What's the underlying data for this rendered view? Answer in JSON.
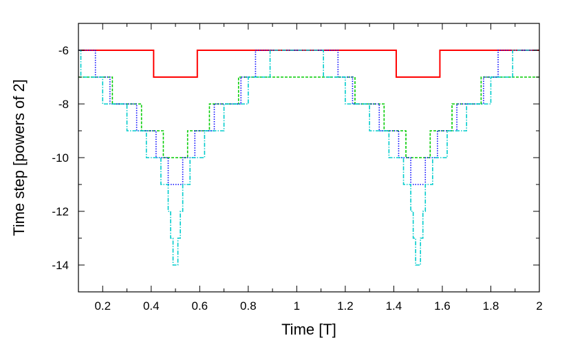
{
  "chart_data": {
    "type": "line",
    "title": "",
    "xlabel": "Time [T]",
    "ylabel": "Time step [powers of 2]",
    "xlim": [
      0.1,
      2.0
    ],
    "ylim": [
      -15,
      -5
    ],
    "xticks": [
      0.2,
      0.4,
      0.6,
      0.8,
      1,
      1.2,
      1.4,
      1.6,
      1.8,
      2
    ],
    "xtick_labels": [
      "0.2",
      "0.4",
      "0.6",
      "0.8",
      "1",
      "1.2",
      "1.4",
      "1.6",
      "1.8",
      "2"
    ],
    "yticks": [
      -14,
      -12,
      -10,
      -8,
      -6
    ],
    "ytick_labels": [
      "-14",
      "-12",
      "-10",
      "-8",
      "-6"
    ],
    "grid": false,
    "legend": "none",
    "series": [
      {
        "color": "#ff0000",
        "style": "solid",
        "x": [
          0.1,
          0.41,
          0.41,
          0.59,
          0.59,
          1.41,
          1.41,
          1.59,
          1.59,
          2.0
        ],
        "y": [
          -6,
          -6,
          -7,
          -7,
          -6,
          -6,
          -7,
          -7,
          -6,
          -6
        ]
      },
      {
        "color": "#00cc00",
        "style": "dashed",
        "x": [
          0.1,
          0.24,
          0.24,
          0.36,
          0.36,
          0.45,
          0.45,
          0.55,
          0.55,
          0.64,
          0.64,
          0.76,
          0.76,
          1.24,
          1.24,
          1.36,
          1.36,
          1.45,
          1.45,
          1.55,
          1.55,
          1.64,
          1.64,
          1.76,
          1.76,
          2.0
        ],
        "y": [
          -7,
          -7,
          -8,
          -8,
          -9,
          -9,
          -10,
          -10,
          -9,
          -9,
          -8,
          -8,
          -7,
          -7,
          -8,
          -8,
          -9,
          -9,
          -10,
          -10,
          -9,
          -9,
          -8,
          -8,
          -7,
          -7
        ]
      },
      {
        "color": "#0000ff",
        "style": "dotted",
        "x": [
          0.1,
          0.17,
          0.17,
          0.23,
          0.23,
          0.34,
          0.34,
          0.42,
          0.42,
          0.47,
          0.47,
          0.53,
          0.53,
          0.58,
          0.58,
          0.66,
          0.66,
          0.77,
          0.77,
          0.83,
          0.83,
          1.17,
          1.17,
          1.23,
          1.23,
          1.34,
          1.34,
          1.42,
          1.42,
          1.47,
          1.47,
          1.53,
          1.53,
          1.58,
          1.58,
          1.66,
          1.66,
          1.77,
          1.77,
          1.83,
          1.83,
          2.0
        ],
        "y": [
          -6,
          -6,
          -7,
          -7,
          -8,
          -8,
          -9,
          -9,
          -10,
          -10,
          -11,
          -11,
          -10,
          -10,
          -9,
          -9,
          -8,
          -8,
          -7,
          -7,
          -6,
          -6,
          -7,
          -7,
          -8,
          -8,
          -9,
          -9,
          -10,
          -10,
          -11,
          -11,
          -10,
          -10,
          -9,
          -9,
          -8,
          -8,
          -7,
          -7,
          -6,
          -6
        ]
      },
      {
        "color": "#00cccc",
        "style": "dashdot",
        "x": [
          0.1,
          0.11,
          0.11,
          0.2,
          0.2,
          0.3,
          0.3,
          0.38,
          0.38,
          0.44,
          0.44,
          0.47,
          0.47,
          0.48,
          0.48,
          0.49,
          0.49,
          0.51,
          0.51,
          0.52,
          0.52,
          0.53,
          0.53,
          0.56,
          0.56,
          0.62,
          0.62,
          0.7,
          0.7,
          0.8,
          0.8,
          0.89,
          0.89,
          1.11,
          1.11,
          1.2,
          1.2,
          1.3,
          1.3,
          1.38,
          1.38,
          1.44,
          1.44,
          1.47,
          1.47,
          1.48,
          1.48,
          1.49,
          1.49,
          1.51,
          1.51,
          1.52,
          1.52,
          1.53,
          1.53,
          1.56,
          1.56,
          1.62,
          1.62,
          1.7,
          1.7,
          1.8,
          1.8,
          1.89,
          1.89,
          2.0
        ],
        "y": [
          -6,
          -6,
          -7,
          -7,
          -8,
          -8,
          -9,
          -9,
          -10,
          -10,
          -11,
          -11,
          -12,
          -12,
          -13,
          -13,
          -14,
          -14,
          -13,
          -13,
          -12,
          -12,
          -11,
          -11,
          -10,
          -10,
          -9,
          -9,
          -8,
          -8,
          -7,
          -7,
          -6,
          -6,
          -7,
          -7,
          -8,
          -8,
          -9,
          -9,
          -10,
          -10,
          -11,
          -11,
          -12,
          -12,
          -13,
          -13,
          -14,
          -14,
          -13,
          -13,
          -12,
          -12,
          -11,
          -11,
          -10,
          -10,
          -9,
          -9,
          -8,
          -8,
          -7,
          -7,
          -6,
          -6
        ]
      }
    ]
  }
}
